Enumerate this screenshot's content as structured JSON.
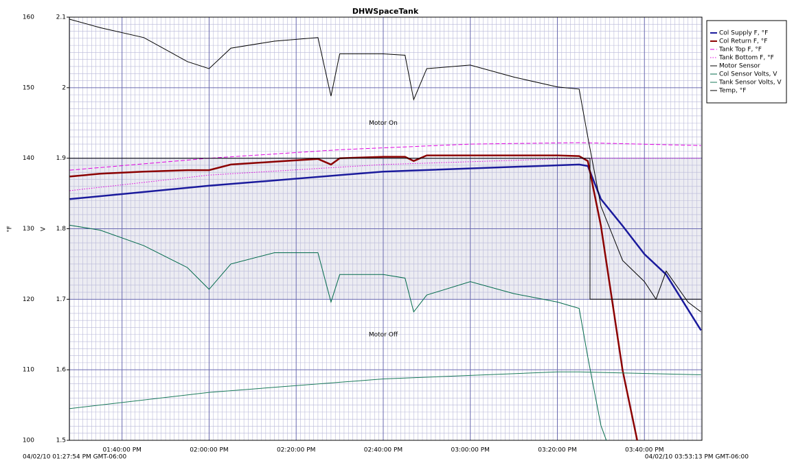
{
  "chart_data": {
    "type": "line",
    "title": "DHWSpaceTank",
    "ylabel": "°F",
    "y2label": "V",
    "ylim": [
      100,
      160
    ],
    "yticks": [
      100,
      110,
      120,
      130,
      140,
      150,
      160
    ],
    "y2lim": [
      1.5,
      2.1
    ],
    "y2ticks": [
      1.5,
      1.6,
      1.7,
      1.8,
      1.9,
      2,
      2.1
    ],
    "xlim": [
      "04/02/10 01:27:54 PM GMT-06:00",
      "04/02/10 03:53:13 PM GMT-06:00"
    ],
    "xticks": [
      "01:40:00 PM",
      "02:00:00 PM",
      "02:20:00 PM",
      "02:40:00 PM",
      "03:00:00 PM",
      "03:20:00 PM",
      "03:40:00 PM"
    ],
    "grid": true,
    "legend": "upper right",
    "annotations": [
      {
        "text": "Motor On",
        "x": "02:40:00 PM",
        "y": 145
      },
      {
        "text": "Motor Off",
        "x": "02:40:00 PM",
        "y": 115
      }
    ],
    "series": [
      {
        "name": "Col Supply F, °F",
        "color": "#1a1a9c",
        "width": 2.5,
        "x": [
          "01:28:00 PM",
          "02:00:00 PM",
          "02:40:00 PM",
          "03:25:00 PM",
          "03:27:00 PM",
          "03:30:00 PM",
          "03:35:00 PM",
          "03:40:00 PM",
          "03:45:00 PM",
          "03:53:00 PM"
        ],
        "values": [
          134.2,
          136.1,
          138.1,
          139.1,
          138.9,
          134.2,
          130.4,
          126.4,
          123.5,
          115.6
        ]
      },
      {
        "name": "Col Return F, °F",
        "color": "#8b0000",
        "width": 2.5,
        "x": [
          "01:28:00 PM",
          "01:35:00 PM",
          "01:45:00 PM",
          "01:55:00 PM",
          "02:00:00 PM",
          "02:05:00 PM",
          "02:15:00 PM",
          "02:25:00 PM",
          "02:28:00 PM",
          "02:30:00 PM",
          "02:40:00 PM",
          "02:45:00 PM",
          "02:47:00 PM",
          "02:50:00 PM",
          "03:00:00 PM",
          "03:10:00 PM",
          "03:20:00 PM",
          "03:25:00 PM",
          "03:27:00 PM",
          "03:30:00 PM",
          "03:35:00 PM",
          "03:38:20 PM"
        ],
        "values": [
          137.4,
          137.8,
          138.1,
          138.3,
          138.3,
          139.1,
          139.5,
          139.9,
          139.1,
          140,
          140.2,
          140.2,
          139.6,
          140.4,
          140.4,
          140.4,
          140.4,
          140.3,
          139.6,
          130.4,
          109.9,
          100
        ]
      },
      {
        "name": "Tank Top F, °F",
        "color": "#e000e0",
        "width": 1,
        "dash": "dashed",
        "x": [
          "01:28:00 PM",
          "02:00:00 PM",
          "02:30:00 PM",
          "03:00:00 PM",
          "03:25:00 PM",
          "03:53:00 PM"
        ],
        "values": [
          138.3,
          140,
          141.2,
          142,
          142.2,
          141.8
        ]
      },
      {
        "name": "Tank Bottom F, °F",
        "color": "#e000e0",
        "width": 1,
        "dash": "dotted",
        "x": [
          "01:28:00 PM",
          "02:00:00 PM",
          "02:40:00 PM",
          "03:20:00 PM",
          "03:27:45 PM",
          "03:53:00 PM"
        ],
        "values": [
          135.4,
          137.6,
          139.1,
          139.9,
          140,
          140
        ]
      },
      {
        "name": "Motor Sensor",
        "color": "#000000",
        "width": 1,
        "shade": true,
        "x": [
          "01:28:00 PM",
          "03:27:30 PM",
          "03:27:30 PM",
          "03:53:00 PM"
        ],
        "values": [
          140,
          140,
          120,
          120
        ]
      },
      {
        "name": "Col Sensor Volts, V",
        "color": "#00694a",
        "width": 1,
        "axis": "y2",
        "x": [
          "01:28:00 PM",
          "01:35:00 PM",
          "01:45:00 PM",
          "01:55:00 PM",
          "02:00:00 PM",
          "02:05:00 PM",
          "02:15:00 PM",
          "02:25:00 PM",
          "02:28:00 PM",
          "02:30:00 PM",
          "02:40:00 PM",
          "02:45:00 PM",
          "02:47:00 PM",
          "02:50:00 PM",
          "03:00:00 PM",
          "03:10:00 PM",
          "03:20:00 PM",
          "03:25:00 PM",
          "03:27:00 PM",
          "03:30:00 PM",
          "03:31:15 PM"
        ],
        "values": [
          1.805,
          1.798,
          1.776,
          1.745,
          1.714,
          1.75,
          1.766,
          1.766,
          1.696,
          1.735,
          1.735,
          1.73,
          1.682,
          1.706,
          1.725,
          1.708,
          1.696,
          1.687,
          1.618,
          1.521,
          1.5
        ]
      },
      {
        "name": "Tank Sensor Volts, V",
        "color": "#1a7a5a",
        "width": 1,
        "axis": "y2",
        "x": [
          "01:28:00 PM",
          "02:00:00 PM",
          "02:40:00 PM",
          "03:20:00 PM",
          "03:25:00 PM",
          "03:53:00 PM"
        ],
        "values": [
          1.545,
          1.568,
          1.587,
          1.597,
          1.597,
          1.593
        ]
      },
      {
        "name": "Temp, °F",
        "color": "#000000",
        "width": 1,
        "x": [
          "01:28:00 PM",
          "01:35:00 PM",
          "01:45:00 PM",
          "01:55:00 PM",
          "02:00:00 PM",
          "02:05:00 PM",
          "02:15:00 PM",
          "02:25:00 PM",
          "02:28:00 PM",
          "02:30:00 PM",
          "02:40:00 PM",
          "02:45:00 PM",
          "02:47:00 PM",
          "02:50:00 PM",
          "03:00:00 PM",
          "03:10:00 PM",
          "03:20:00 PM",
          "03:25:00 PM",
          "03:27:00 PM",
          "03:30:00 PM",
          "03:35:00 PM",
          "03:40:00 PM",
          "03:42:40 PM",
          "03:45:00 PM",
          "03:50:00 PM",
          "03:53:00 PM"
        ],
        "values": [
          159.7,
          158.5,
          157.1,
          153.7,
          152.7,
          155.6,
          156.6,
          157.1,
          148.8,
          154.8,
          154.8,
          154.6,
          148.3,
          152.7,
          153.2,
          151.5,
          150.1,
          149.8,
          143,
          133.2,
          125.5,
          122.5,
          120,
          124,
          119.6,
          118.2
        ]
      }
    ]
  }
}
